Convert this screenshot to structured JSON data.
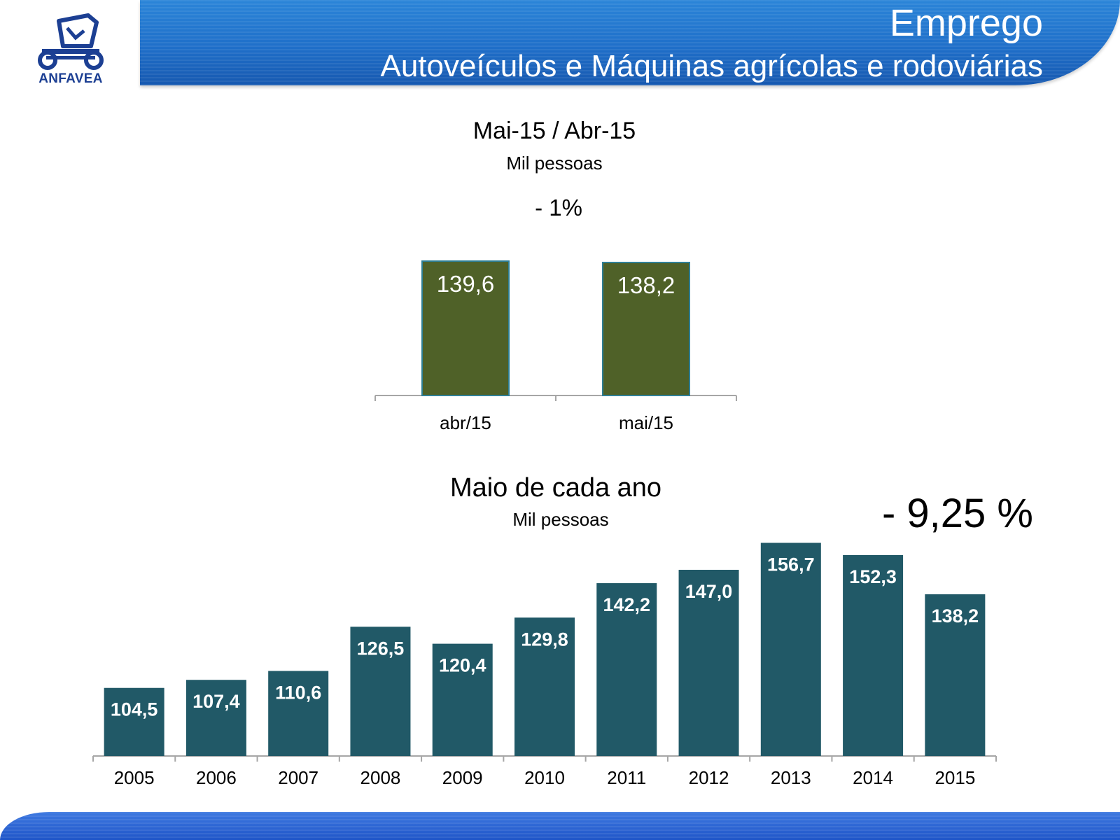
{
  "header": {
    "title": "Emprego",
    "subtitle": "Autoveículos e Máquinas agrícolas e rodoviárias"
  },
  "logo": {
    "text": "ANFAVEA"
  },
  "colors": {
    "header_blue": "#1f6fc9",
    "bar_green": "#4f6128",
    "bar_teal": "#215967",
    "axis_gray": "#a6a6a6"
  },
  "chart_data": [
    {
      "type": "bar",
      "title": "Mai-15 / Abr-15",
      "subtitle": "Mil pessoas",
      "annotation": "- 1%",
      "categories": [
        "abr/15",
        "mai/15"
      ],
      "values": [
        139.6,
        138.2
      ],
      "value_labels": [
        "139,6",
        "138,2"
      ],
      "ylim": [
        0,
        150
      ],
      "grid": false,
      "legend": "none"
    },
    {
      "type": "bar",
      "title": "Maio de cada ano",
      "subtitle": "Mil pessoas",
      "annotation": "- 9,25 %",
      "categories": [
        "2005",
        "2006",
        "2007",
        "2008",
        "2009",
        "2010",
        "2011",
        "2012",
        "2013",
        "2014",
        "2015"
      ],
      "values": [
        104.5,
        107.4,
        110.6,
        126.5,
        120.4,
        129.8,
        142.2,
        147.0,
        156.7,
        152.3,
        138.2
      ],
      "value_labels": [
        "104,5",
        "107,4",
        "110,6",
        "126,5",
        "120,4",
        "129,8",
        "142,2",
        "147,0",
        "156,7",
        "152,3",
        "138,2"
      ],
      "ylim": [
        80,
        160
      ],
      "grid": false,
      "legend": "none"
    }
  ]
}
